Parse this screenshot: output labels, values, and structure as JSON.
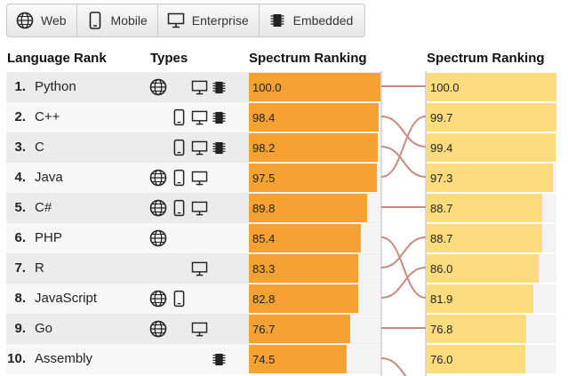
{
  "filters": [
    {
      "label": "Web",
      "icon": "globe-icon"
    },
    {
      "label": "Mobile",
      "icon": "phone-icon"
    },
    {
      "label": "Enterprise",
      "icon": "monitor-icon"
    },
    {
      "label": "Embedded",
      "icon": "chip-icon"
    }
  ],
  "headers": {
    "rank": "Language Rank",
    "types": "Types",
    "left_ranking": "Spectrum Ranking",
    "right_ranking": "Spectrum Ranking"
  },
  "rows": [
    {
      "rank": "1.",
      "name": "Python",
      "types": [
        "web",
        "enterprise",
        "embedded"
      ],
      "left_value": "100.0",
      "right_value": "100.0"
    },
    {
      "rank": "2.",
      "name": "C++",
      "types": [
        "mobile",
        "enterprise",
        "embedded"
      ],
      "left_value": "98.4",
      "right_value": "99.7"
    },
    {
      "rank": "3.",
      "name": "C",
      "types": [
        "mobile",
        "enterprise",
        "embedded"
      ],
      "left_value": "98.2",
      "right_value": "99.4"
    },
    {
      "rank": "4.",
      "name": "Java",
      "types": [
        "web",
        "mobile",
        "enterprise"
      ],
      "left_value": "97.5",
      "right_value": "97.3"
    },
    {
      "rank": "5.",
      "name": "C#",
      "types": [
        "web",
        "mobile",
        "enterprise"
      ],
      "left_value": "89.8",
      "right_value": "88.7"
    },
    {
      "rank": "6.",
      "name": "PHP",
      "types": [
        "web"
      ],
      "left_value": "85.4",
      "right_value": "88.7"
    },
    {
      "rank": "7.",
      "name": "R",
      "types": [
        "enterprise"
      ],
      "left_value": "83.3",
      "right_value": "86.0"
    },
    {
      "rank": "8.",
      "name": "JavaScript",
      "types": [
        "web",
        "mobile"
      ],
      "left_value": "82.8",
      "right_value": "81.9"
    },
    {
      "rank": "9.",
      "name": "Go",
      "types": [
        "web",
        "enterprise"
      ],
      "left_value": "76.7",
      "right_value": "76.8"
    },
    {
      "rank": "10.",
      "name": "Assembly",
      "types": [
        "embedded"
      ],
      "left_value": "74.5",
      "right_value": "76.0"
    }
  ],
  "links": [
    {
      "from_rank": 1,
      "to_rank": 1
    },
    {
      "from_rank": 2,
      "to_rank": 3
    },
    {
      "from_rank": 3,
      "to_rank": 4
    },
    {
      "from_rank": 4,
      "to_rank": 2
    },
    {
      "from_rank": 5,
      "to_rank": 5
    },
    {
      "from_rank": 6,
      "to_rank": 8
    },
    {
      "from_rank": 7,
      "to_rank": 6
    },
    {
      "from_rank": 8,
      "to_rank": 7
    },
    {
      "from_rank": 9,
      "to_rank": 9
    },
    {
      "from_rank": 10,
      "to_rank": 11
    }
  ],
  "colors": {
    "left_bar": "#f5a233",
    "right_bar": "#fddc7e",
    "link": "#c98b80"
  }
}
